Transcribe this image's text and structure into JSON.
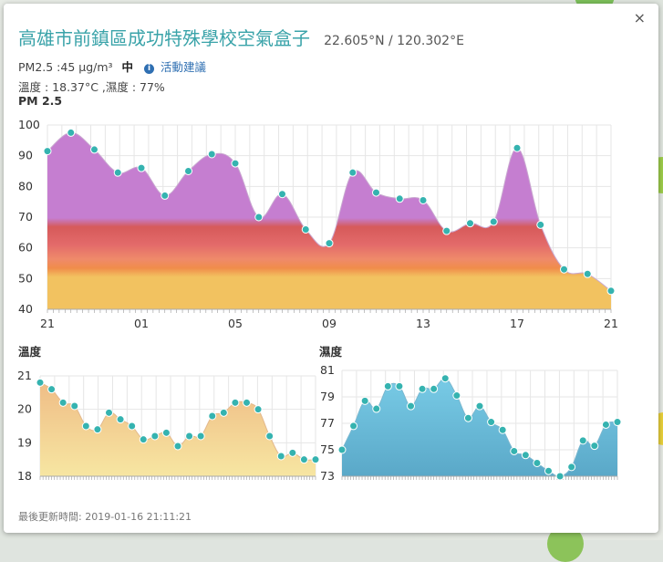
{
  "popup": {
    "title": "高雄市前鎮區成功特殊學校空氣盒子",
    "coordinates": "22.605°N / 120.302°E",
    "close_label": "×",
    "pm_reading": "PM2.5 :45 μg/m³",
    "pm_level": "中",
    "advice_link": "活動建議",
    "weather": "溫度 : 18.37°C ,濕度 : 77%",
    "updated": "最後更新時間: 2019-01-16 21:11:21"
  },
  "colors": {
    "title": "#3aa3a9",
    "pm_purple": "#c57ed0",
    "pm_red": "#d65a5a",
    "pm_orange": "#f08c4a",
    "pm_yellow": "#f2c260",
    "temp_fill": "#f0c98a",
    "humidity_fill": "#6bbcdc",
    "point": "#35b3b0"
  },
  "chart_data": [
    {
      "type": "area",
      "title": "PM 2.5",
      "x_ticks": [
        "21",
        "01",
        "05",
        "09",
        "13",
        "17",
        "21"
      ],
      "ylim": [
        40,
        100
      ],
      "y_ticks": [
        40,
        50,
        60,
        70,
        80,
        90,
        100
      ],
      "grid": true,
      "values": [
        91.5,
        97.5,
        92,
        84.5,
        86,
        77,
        85,
        90.5,
        87.5,
        70,
        77.5,
        66,
        61.5,
        84.5,
        78,
        76,
        75.5,
        65.5,
        68,
        68.5,
        92.5,
        67.5,
        53,
        51.5,
        46
      ]
    },
    {
      "type": "area",
      "title": "溫度",
      "ylim": [
        18,
        21
      ],
      "y_ticks": [
        18,
        19,
        20,
        21
      ],
      "grid": true,
      "values": [
        20.8,
        20.6,
        20.2,
        20.1,
        19.5,
        19.4,
        19.9,
        19.7,
        19.5,
        19.1,
        19.2,
        19.3,
        18.9,
        19.2,
        19.2,
        19.8,
        19.9,
        20.2,
        20.2,
        20.0,
        19.2,
        18.6,
        18.7,
        18.5,
        18.5
      ]
    },
    {
      "type": "area",
      "title": "濕度",
      "ylim": [
        73,
        81
      ],
      "y_ticks": [
        73,
        75,
        77,
        79,
        81
      ],
      "grid": true,
      "values": [
        75.0,
        76.8,
        78.7,
        78.1,
        79.8,
        79.8,
        78.3,
        79.6,
        79.6,
        80.4,
        79.1,
        77.4,
        78.3,
        77.1,
        76.5,
        74.9,
        74.6,
        74.0,
        73.4,
        73.0,
        73.7,
        75.7,
        75.3,
        76.9,
        77.1
      ]
    }
  ]
}
